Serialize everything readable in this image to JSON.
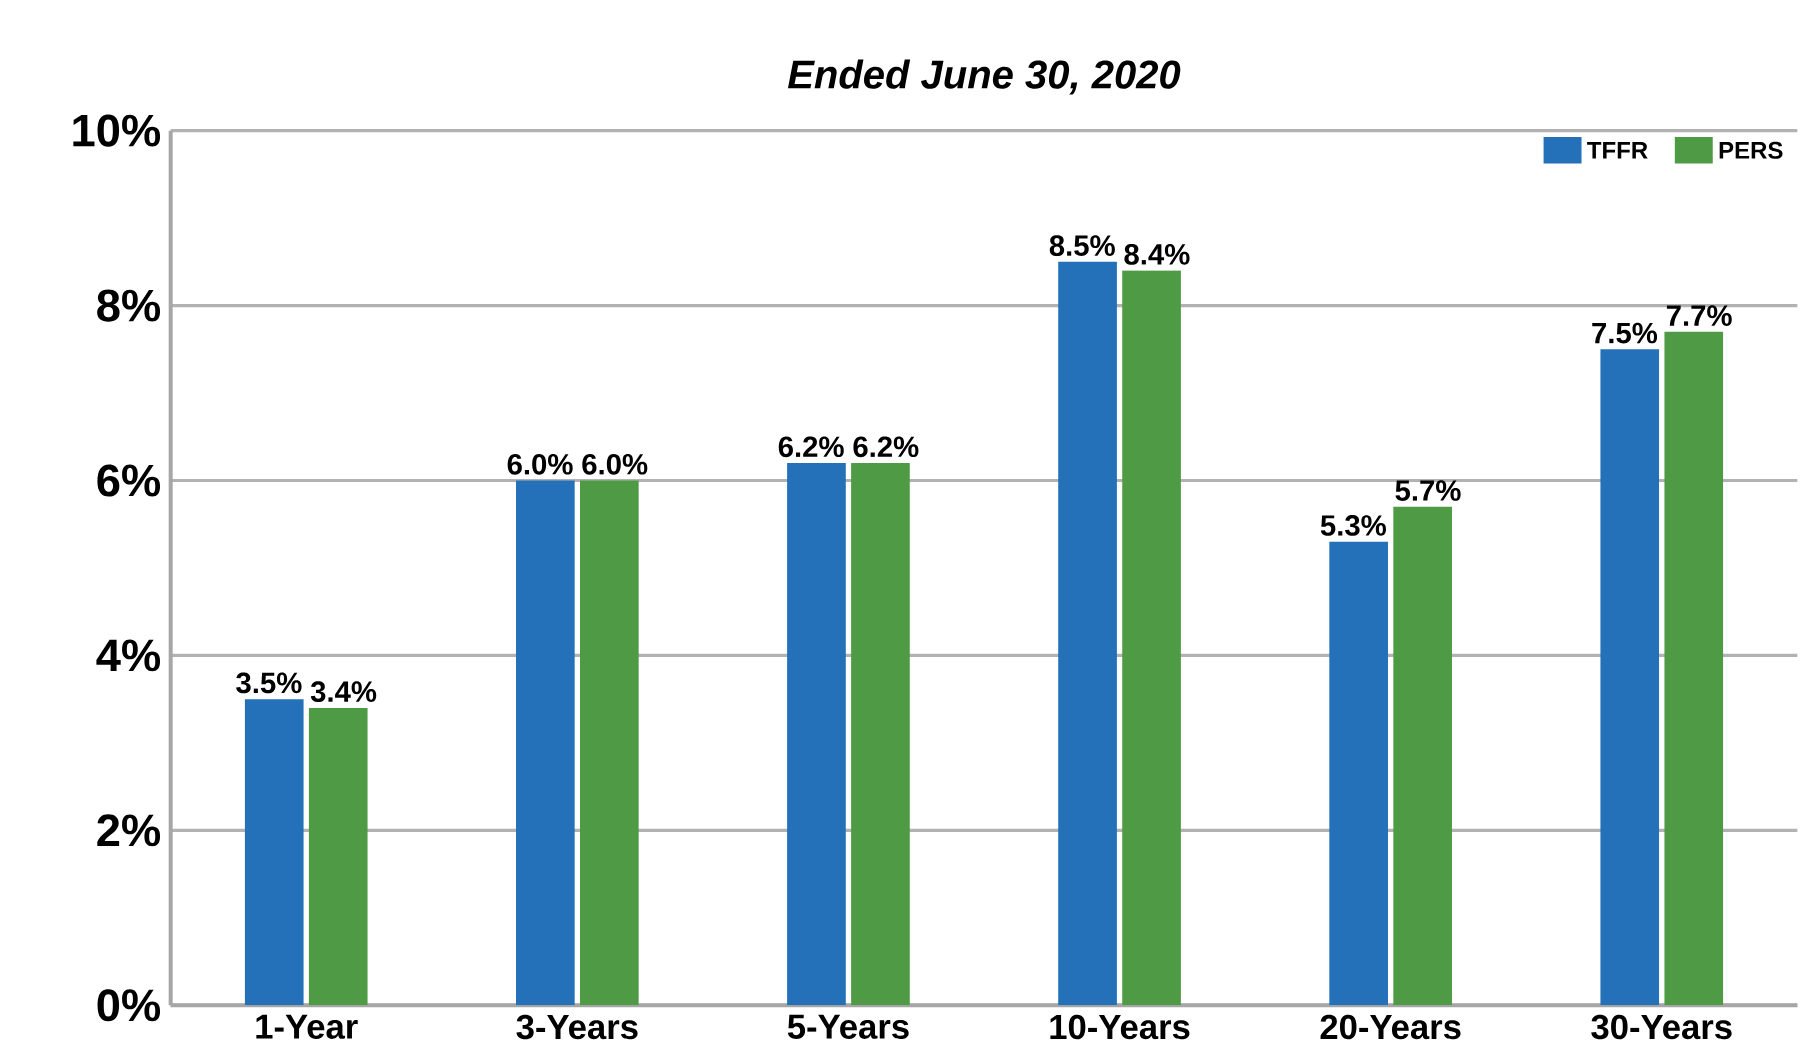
{
  "chart_data": {
    "type": "bar",
    "title": "Ended June 30, 2020",
    "categories": [
      "1-Year",
      "3-Years",
      "5-Years",
      "10-Years",
      "20-Years",
      "30-Years"
    ],
    "series": [
      {
        "name": "TFFR",
        "color": "#2470b9",
        "values": [
          3.5,
          6.0,
          6.2,
          8.5,
          5.3,
          7.5
        ],
        "value_labels": [
          "3.5%",
          "6.0%",
          "6.2%",
          "8.5%",
          "5.3%",
          "7.5%"
        ]
      },
      {
        "name": "PERS",
        "color": "#4f9b45",
        "values": [
          3.4,
          6.0,
          6.2,
          8.4,
          5.7,
          7.7
        ],
        "value_labels": [
          "3.4%",
          "6.0%",
          "6.2%",
          "8.4%",
          "5.7%",
          "7.7%"
        ]
      }
    ],
    "ylim": [
      0,
      10
    ],
    "yticks": [
      {
        "value": 0,
        "label": "0%"
      },
      {
        "value": 2,
        "label": "2%"
      },
      {
        "value": 4,
        "label": "4%"
      },
      {
        "value": 6,
        "label": "6%"
      },
      {
        "value": 8,
        "label": "8%"
      },
      {
        "value": 10,
        "label": "10%"
      }
    ],
    "grid": "y",
    "legend": "top right"
  }
}
